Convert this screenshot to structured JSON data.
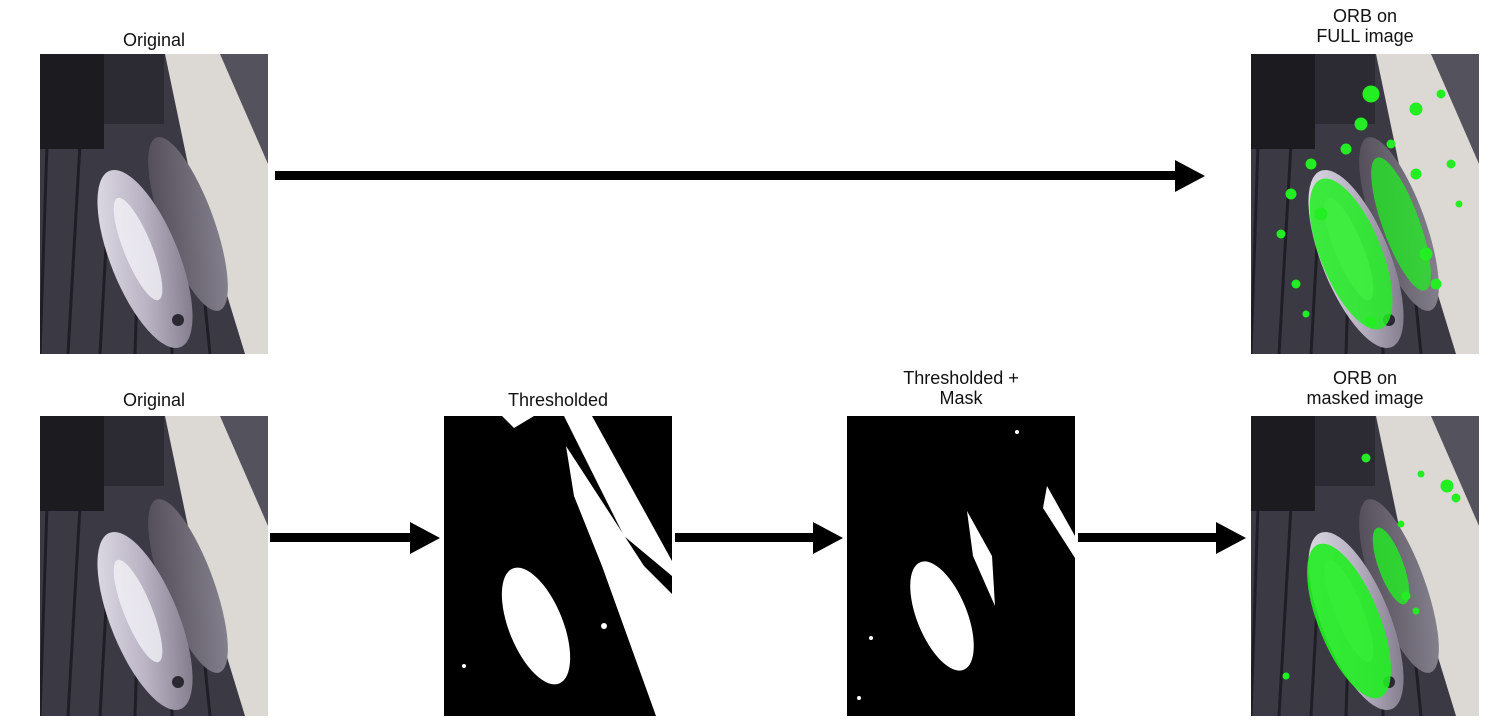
{
  "row1": {
    "left_label": "Original",
    "right_label_line1": "ORB on",
    "right_label_line2": "FULL image"
  },
  "row2": {
    "original_label": "Original",
    "thresholded_label": "Thresholded",
    "mask_label_line1": "Thresholded +",
    "mask_label_line2": "Mask",
    "orb_label_line1": "ORB on",
    "orb_label_line2": "masked image"
  },
  "colors": {
    "keypoints": "#22ee22",
    "arrow": "#000000",
    "deck": "#3a3844",
    "threshold_white": "#ffffff",
    "threshold_black": "#000000"
  }
}
